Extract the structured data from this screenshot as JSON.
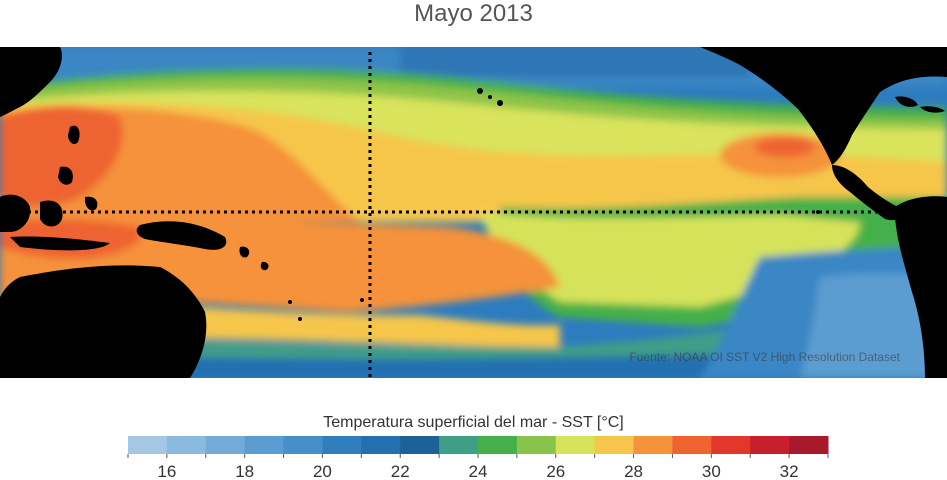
{
  "title": "Mayo 2013",
  "map": {
    "source_text": "Fuente: NOAA OI SST V2 High Resolution Dataset",
    "colors": {
      "land": "#000000",
      "graticule": "#000000"
    }
  },
  "colorbar": {
    "title": "Temperatura superficial del mar - SST  [°C]",
    "colors": [
      "#a4c8e4",
      "#8bbadf",
      "#72abd8",
      "#5b9dd1",
      "#458fcb",
      "#2f7fbf",
      "#2370b1",
      "#1d6199",
      "#3f9e86",
      "#45b04a",
      "#88c44b",
      "#d6e35a",
      "#f6c64c",
      "#f5923a",
      "#ee6330",
      "#e2382c",
      "#c71f2c",
      "#a61a2b"
    ],
    "tick_labels": [
      "16",
      "18",
      "20",
      "22",
      "24",
      "26",
      "28",
      "30",
      "32"
    ]
  }
}
